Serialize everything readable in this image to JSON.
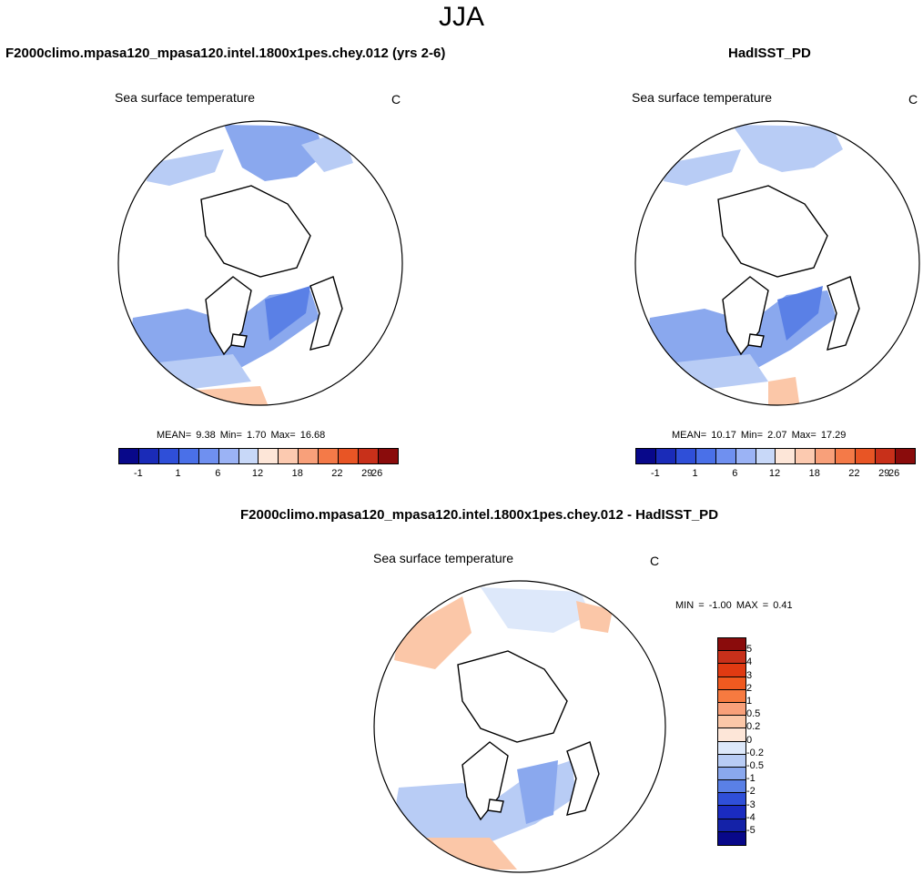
{
  "title": "JJA",
  "panels": [
    {
      "title": "F2000climo.mpasa120_mpasa120.intel.1800x1pes.chey.012 (yrs 2-6)",
      "variable": "Sea surface temperature",
      "units": "C",
      "stats": {
        "mean_label": "MEAN=",
        "mean": "9.38",
        "min_label": "Min=",
        "min": "1.70",
        "max_label": "Max=",
        "max": "16.68"
      }
    },
    {
      "title": "HadISST_PD",
      "variable": "Sea surface temperature",
      "units": "C",
      "stats": {
        "mean_label": "MEAN=",
        "mean": "10.17",
        "min_label": "Min=",
        "min": "2.07",
        "max_label": "Max=",
        "max": "17.29"
      }
    }
  ],
  "diff_panel": {
    "title": "F2000climo.mpasa120_mpasa120.intel.1800x1pes.chey.012 - HadISST_PD",
    "variable": "Sea surface temperature",
    "units": "C",
    "stats": {
      "min_label": "MIN =",
      "min": "-1.00",
      "max_label": "MAX =",
      "max": "0.41"
    }
  },
  "colorbar_field": {
    "ticks": [
      "-1",
      "1",
      "6",
      "12",
      "18",
      "22",
      "26",
      "29"
    ],
    "colors": [
      "#08088a",
      "#1a2bb8",
      "#2f4fd8",
      "#4a70e8",
      "#6f90f0",
      "#9bb3f5",
      "#c8d8f8",
      "#fde6d8",
      "#fccab0",
      "#f8a07a",
      "#f47a48",
      "#e85525",
      "#c8301a",
      "#8a0c0c"
    ]
  },
  "colorbar_diff": {
    "ticks": [
      "5",
      "4",
      "3",
      "2",
      "1",
      "0.5",
      "0.2",
      "0",
      "-0.2",
      "-0.5",
      "-1",
      "-2",
      "-3",
      "-4",
      "-5"
    ],
    "colors": [
      "#8a0c0c",
      "#c8301a",
      "#e03a12",
      "#f05a20",
      "#f67a40",
      "#f8a07a",
      "#fbc7a8",
      "#fde6d8",
      "#dde8fa",
      "#b8ccf5",
      "#8aa8ee",
      "#5a80e6",
      "#2f4fd8",
      "#1a2bc0",
      "#1422a8",
      "#08088a"
    ]
  },
  "map_colors": {
    "cool": "#b8ccf5",
    "mid": "#8aa8ee",
    "deep": "#5a80e6",
    "warm": "#fbc7a8",
    "land": "#ffffff"
  }
}
